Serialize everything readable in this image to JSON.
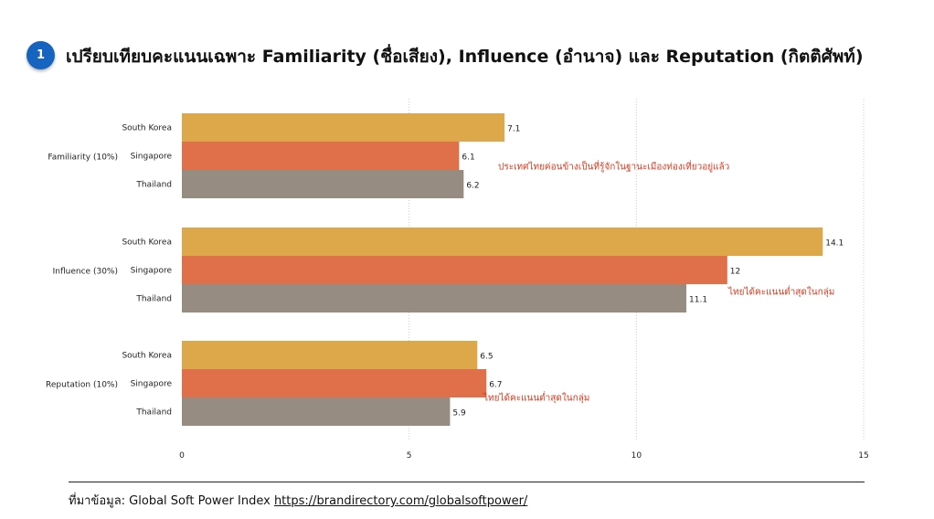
{
  "header": {
    "badge": "1",
    "title": "เปรียบเทียบคะแนนเฉพาะ Familiarity (ชื่อเสียง), Influence (อำนาจ) และ Reputation (กิตติศัพท์)"
  },
  "chart_data": {
    "type": "bar",
    "orientation": "horizontal",
    "groups": [
      {
        "label": "Familiarity (10%)",
        "bars": [
          {
            "country": "South Korea",
            "value": 7.1
          },
          {
            "country": "Singapore",
            "value": 6.1
          },
          {
            "country": "Thailand",
            "value": 6.2
          }
        ],
        "annotation": "ประเทศไทยค่อนข้างเป็นที่รู้จักในฐานะเมืองท่องเที่ยวอยู่แล้ว"
      },
      {
        "label": "Influence (30%)",
        "bars": [
          {
            "country": "South Korea",
            "value": 14.1
          },
          {
            "country": "Singapore",
            "value": 12
          },
          {
            "country": "Thailand",
            "value": 11.1
          }
        ],
        "annotation": "ไทยได้คะแนนต่ำสุดในกลุ่ม"
      },
      {
        "label": "Reputation (10%)",
        "bars": [
          {
            "country": "South Korea",
            "value": 6.5
          },
          {
            "country": "Singapore",
            "value": 6.7
          },
          {
            "country": "Thailand",
            "value": 5.9
          }
        ],
        "annotation": "ไทยได้คะแนนต่ำสุดในกลุ่ม"
      }
    ],
    "xlim": [
      0,
      15
    ],
    "xticks": [
      0,
      5,
      10,
      15
    ],
    "grid": true,
    "colors": {
      "South Korea": "#dda84a",
      "Singapore": "#e0704a",
      "Thailand": "#968c82"
    },
    "annotation_color": "#d93a1e"
  },
  "footer": {
    "source_label": "ที่มาข้อมูล: Global Soft Power Index ",
    "source_link": "https://brandirectory.com/globalsoftpower/"
  }
}
